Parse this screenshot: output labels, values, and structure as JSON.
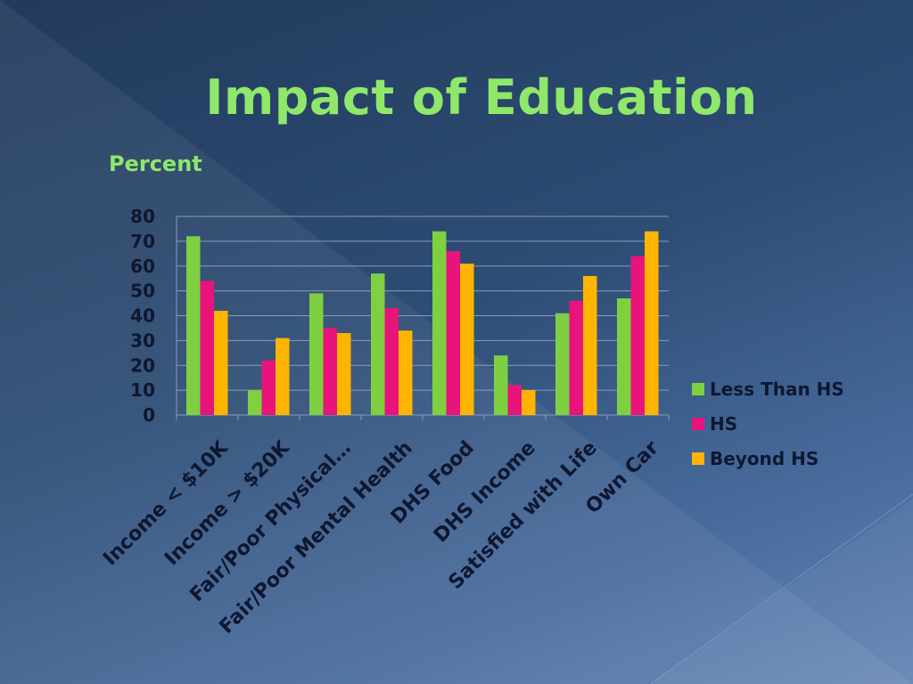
{
  "slide": {
    "title": "Impact of Education",
    "y_axis_title": "Percent"
  },
  "colors": {
    "background": "#2d4c74",
    "title": "#8fe86a",
    "text": "#0d1730",
    "series": [
      "#7ed040",
      "#e8147c",
      "#ffb400"
    ]
  },
  "chart_data": {
    "type": "bar",
    "ylabel": "Percent",
    "ylim": [
      0,
      80
    ],
    "yticks": [
      0,
      10,
      20,
      30,
      40,
      50,
      60,
      70,
      80
    ],
    "grid": true,
    "legend_position": "right",
    "categories": [
      "Income < $10K",
      "Income > $20K",
      "Fair/Poor Physical…",
      "Fair/Poor Mental Health",
      "DHS Food",
      "DHS Income",
      "Satisfied with Life",
      "Own Car"
    ],
    "series": [
      {
        "name": "Less Than HS",
        "values": [
          72,
          10,
          49,
          57,
          74,
          24,
          41,
          47
        ]
      },
      {
        "name": "HS",
        "values": [
          54,
          22,
          35,
          43,
          66,
          12,
          46,
          64
        ]
      },
      {
        "name": "Beyond HS",
        "values": [
          42,
          31,
          33,
          34,
          61,
          10,
          56,
          74
        ]
      }
    ]
  }
}
